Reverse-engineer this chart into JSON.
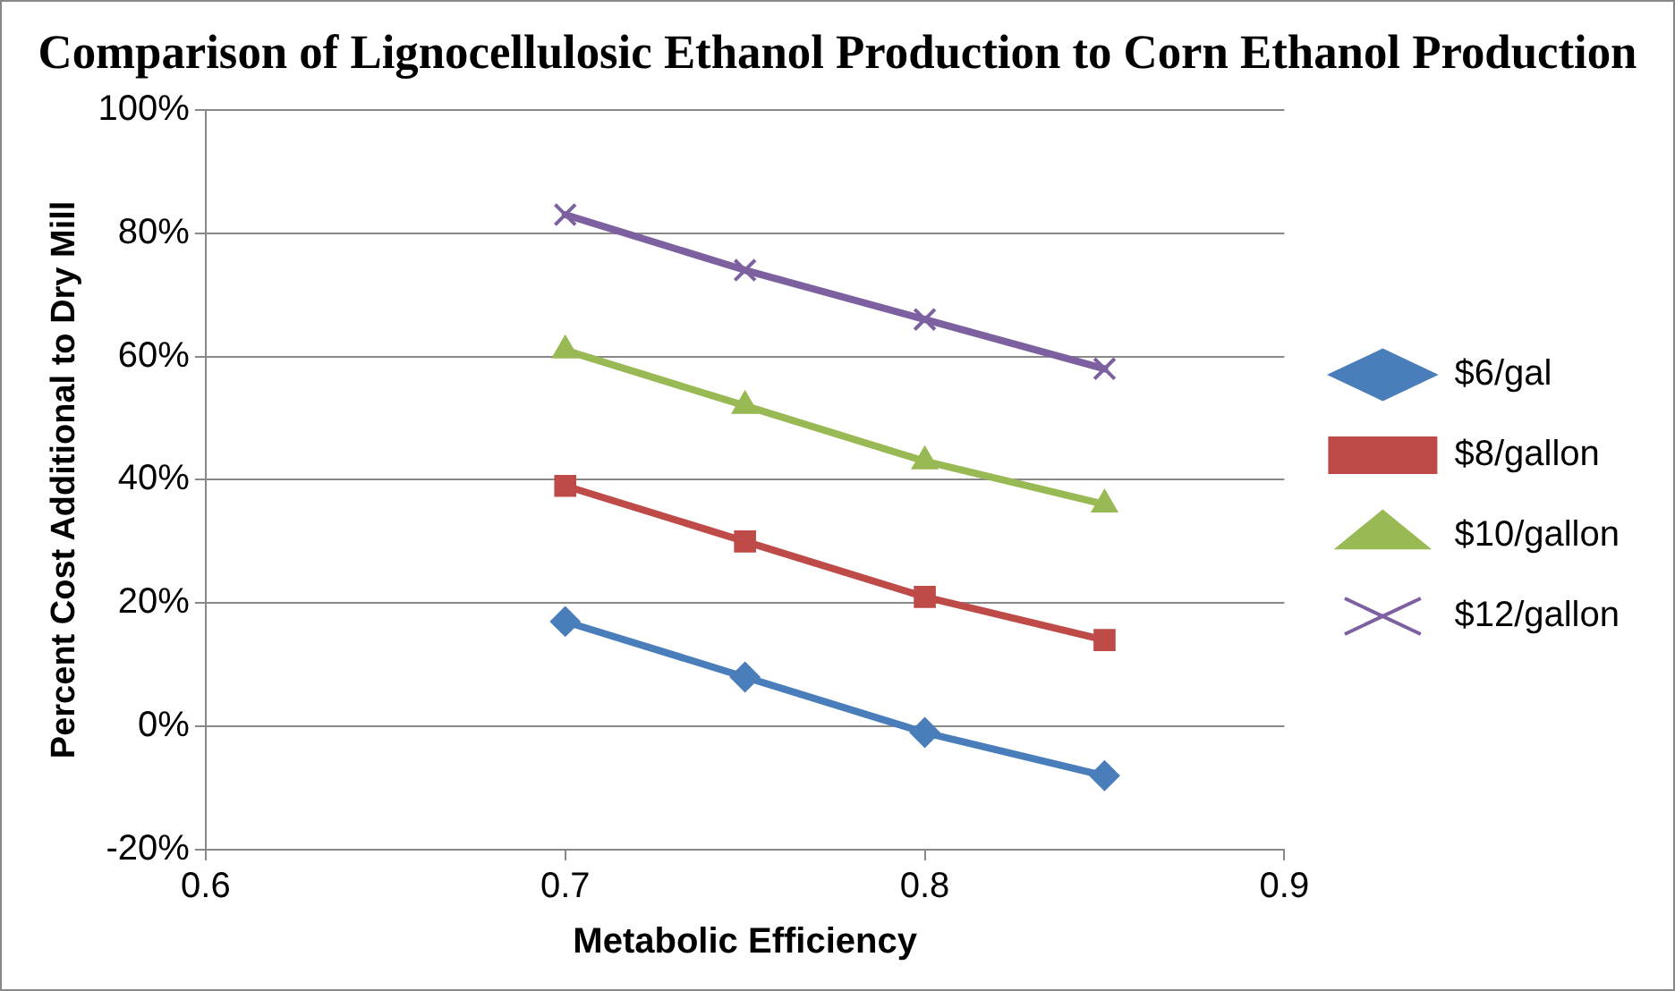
{
  "chart_data": {
    "type": "line",
    "title": "Comparison of Lignocellulosic Ethanol Production to Corn Ethanol Production",
    "xlabel": "Metabolic Efficiency",
    "ylabel": "Percent Cost Additional to Dry Mill",
    "x": [
      0.7,
      0.75,
      0.8,
      0.85
    ],
    "series": [
      {
        "name": "$6/gal",
        "color": "#4a7ebb",
        "marker": "diamond",
        "values": [
          17,
          8,
          -1,
          -8
        ]
      },
      {
        "name": "$8/gallon",
        "color": "#be4b48",
        "marker": "square",
        "values": [
          39,
          30,
          21,
          14
        ]
      },
      {
        "name": "$10/gallon",
        "color": "#98b954",
        "marker": "triangle",
        "values": [
          61,
          52,
          43,
          36
        ]
      },
      {
        "name": "$12/gallon",
        "color": "#7d60a0",
        "marker": "cross",
        "values": [
          83,
          74,
          66,
          58
        ]
      }
    ],
    "xlim": [
      0.6,
      0.9
    ],
    "xticks": [
      0.6,
      0.7,
      0.8,
      0.9
    ],
    "ylim": [
      -20,
      100
    ],
    "yticks": [
      {
        "value": -20,
        "label": "-20%"
      },
      {
        "value": 0,
        "label": "0%"
      },
      {
        "value": 20,
        "label": "20%"
      },
      {
        "value": 40,
        "label": "40%"
      },
      {
        "value": 60,
        "label": "60%"
      },
      {
        "value": 80,
        "label": "80%"
      },
      {
        "value": 100,
        "label": "100%"
      }
    ],
    "grid": "y",
    "legend": "right",
    "line_style": "solid"
  }
}
